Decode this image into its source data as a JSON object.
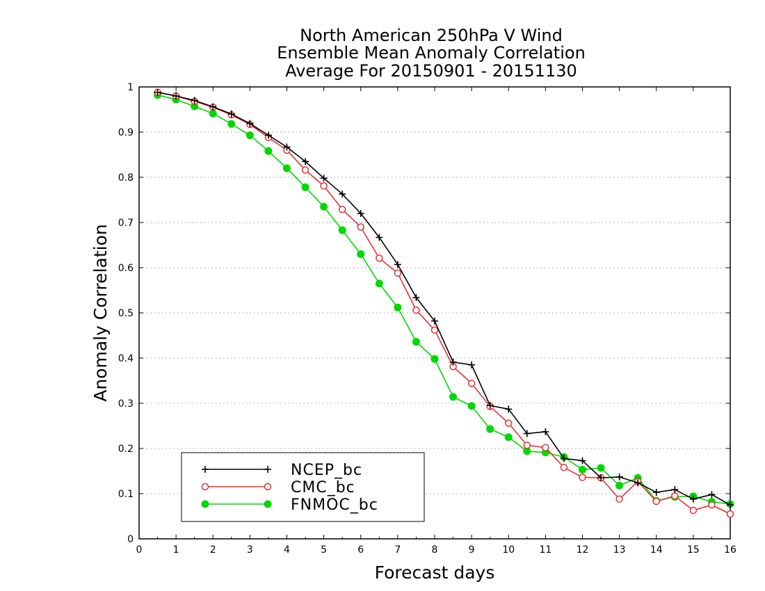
{
  "chart_data": {
    "type": "line",
    "title": [
      "North American 250hPa V Wind",
      "Ensemble Mean Anomaly Correlation",
      "Average For 20150901 - 20151130"
    ],
    "xlabel": "Forecast days",
    "ylabel": "Anomaly Correlation",
    "xlim": [
      0,
      16
    ],
    "ylim": [
      0,
      1
    ],
    "xticks": [
      0,
      1,
      2,
      3,
      4,
      5,
      6,
      7,
      8,
      9,
      10,
      11,
      12,
      13,
      14,
      15,
      16
    ],
    "yticks": [
      0,
      0.1,
      0.2,
      0.3,
      0.4,
      0.5,
      0.6,
      0.7,
      0.8,
      0.9,
      1
    ],
    "ytick_labels": [
      "0",
      "0.1",
      "0.2",
      "0.3",
      "0.4",
      "0.5",
      "0.6",
      "0.7",
      "0.8",
      "0.9",
      "1"
    ],
    "grid": "horizontal dotted",
    "legend_position": "bottom-left",
    "x": [
      0.5,
      1,
      1.5,
      2,
      2.5,
      3,
      3.5,
      4,
      4.5,
      5,
      5.5,
      6,
      6.5,
      7,
      7.5,
      8,
      8.5,
      9,
      9.5,
      10,
      10.5,
      11,
      11.5,
      12,
      12.5,
      13,
      13.5,
      14,
      14.5,
      15,
      15.5,
      16
    ],
    "series": [
      {
        "name": "NCEP_bc",
        "color": "#000000",
        "marker": "plus",
        "values": [
          0.988,
          0.98,
          0.97,
          0.956,
          0.94,
          0.919,
          0.893,
          0.867,
          0.835,
          0.798,
          0.763,
          0.72,
          0.667,
          0.607,
          0.534,
          0.482,
          0.391,
          0.385,
          0.295,
          0.287,
          0.233,
          0.237,
          0.178,
          0.173,
          0.135,
          0.137,
          0.124,
          0.103,
          0.109,
          0.088,
          0.098,
          0.075
        ]
      },
      {
        "name": "CMC_bc",
        "color": "#e83030",
        "marker": "open-circle",
        "values": [
          0.988,
          0.98,
          0.968,
          0.955,
          0.938,
          0.917,
          0.888,
          0.86,
          0.816,
          0.781,
          0.729,
          0.69,
          0.621,
          0.588,
          0.506,
          0.462,
          0.381,
          0.344,
          0.293,
          0.256,
          0.207,
          0.202,
          0.158,
          0.136,
          0.135,
          0.088,
          0.127,
          0.083,
          0.095,
          0.063,
          0.075,
          0.055
        ]
      },
      {
        "name": "FNMOC_bc",
        "color": "#00d800",
        "marker": "filled-circle",
        "values": [
          0.982,
          0.972,
          0.957,
          0.941,
          0.918,
          0.893,
          0.858,
          0.82,
          0.778,
          0.735,
          0.683,
          0.63,
          0.565,
          0.512,
          0.436,
          0.398,
          0.314,
          0.294,
          0.243,
          0.225,
          0.194,
          0.191,
          0.181,
          0.153,
          0.157,
          0.118,
          0.135,
          0.084,
          0.093,
          0.094,
          0.082,
          0.077
        ]
      }
    ]
  }
}
